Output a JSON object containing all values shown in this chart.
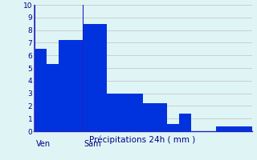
{
  "values": [
    6.5,
    5.3,
    7.2,
    7.2,
    8.5,
    8.5,
    3.0,
    3.0,
    3.0,
    2.2,
    2.2,
    0.6,
    1.4,
    0.0,
    0.0,
    0.4,
    0.35,
    0.35
  ],
  "bar_color": "#0033dd",
  "background_color": "#dff5f5",
  "grid_color": "#c0c0c0",
  "axis_line_color": "#2222bb",
  "xlabel": "Précipitations 24h ( mm )",
  "xlabel_color": "#000088",
  "tick_label_color": "#000088",
  "ylim": [
    0,
    10
  ],
  "yticks": [
    0,
    1,
    2,
    3,
    4,
    5,
    6,
    7,
    8,
    9,
    10
  ],
  "day_labels": [
    [
      "Ven",
      0
    ],
    [
      "Sam",
      4
    ]
  ],
  "day_label_color": "#000088",
  "bar_width": 1.0,
  "n_bars": 18,
  "xlim_left": -0.1,
  "xlim_right": 18
}
